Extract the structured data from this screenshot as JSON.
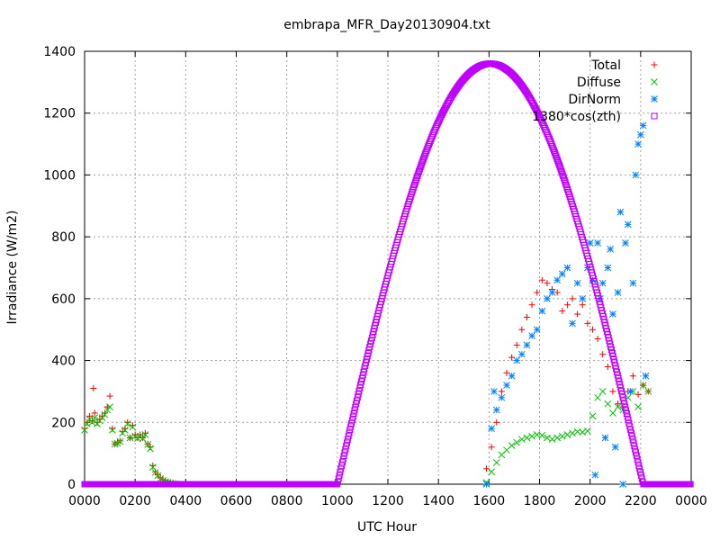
{
  "chart_data": {
    "type": "scatter",
    "title": "embrapa_MFR_Day20130904.txt",
    "xlabel": "UTC Hour",
    "ylabel": "Irradiance (W/m2)",
    "xlim": [
      0,
      24
    ],
    "ylim": [
      0,
      1400
    ],
    "grid": true,
    "legend_position": "top-right",
    "x_ticks": [
      {
        "value": 0,
        "label": "0000"
      },
      {
        "value": 2,
        "label": "0200"
      },
      {
        "value": 4,
        "label": "0400"
      },
      {
        "value": 6,
        "label": "0600"
      },
      {
        "value": 8,
        "label": "0800"
      },
      {
        "value": 10,
        "label": "1000"
      },
      {
        "value": 12,
        "label": "1200"
      },
      {
        "value": 14,
        "label": "1400"
      },
      {
        "value": 16,
        "label": "1600"
      },
      {
        "value": 18,
        "label": "1800"
      },
      {
        "value": 20,
        "label": "2000"
      },
      {
        "value": 22,
        "label": "2200"
      },
      {
        "value": 24,
        "label": "0000"
      }
    ],
    "y_ticks": [
      0,
      200,
      400,
      600,
      800,
      1000,
      1200,
      1400
    ],
    "series": [
      {
        "name": "Total",
        "marker": "plus",
        "color": "#ff0000",
        "x": [
          0.0,
          0.1,
          0.2,
          0.3,
          0.35,
          0.4,
          0.5,
          0.6,
          0.7,
          0.8,
          0.9,
          1.0,
          1.1,
          1.2,
          1.3,
          1.4,
          1.5,
          1.6,
          1.7,
          1.8,
          1.9,
          2.0,
          2.1,
          2.2,
          2.3,
          2.4,
          2.5,
          2.6,
          2.7,
          2.8,
          2.9,
          3.0,
          3.1,
          3.2,
          3.3,
          3.4,
          3.5,
          3.6,
          3.7,
          15.9,
          16.1,
          16.3,
          16.5,
          16.7,
          16.9,
          17.1,
          17.3,
          17.5,
          17.7,
          17.9,
          18.1,
          18.3,
          18.5,
          18.7,
          18.9,
          19.1,
          19.3,
          19.5,
          19.7,
          19.9,
          20.1,
          20.3,
          20.5,
          20.7,
          20.9,
          21.1,
          21.3,
          21.5,
          21.7,
          21.9,
          22.1,
          22.3
        ],
        "y": [
          180,
          200,
          220,
          205,
          310,
          230,
          200,
          210,
          220,
          230,
          250,
          285,
          180,
          130,
          135,
          140,
          170,
          180,
          200,
          150,
          190,
          160,
          150,
          160,
          150,
          165,
          130,
          120,
          60,
          40,
          30,
          20,
          15,
          10,
          8,
          5,
          3,
          1,
          0,
          50,
          120,
          200,
          300,
          360,
          410,
          450,
          500,
          540,
          580,
          620,
          660,
          650,
          630,
          620,
          560,
          580,
          600,
          550,
          580,
          520,
          500,
          470,
          420,
          380,
          300,
          260,
          250,
          300,
          350,
          290,
          320,
          300
        ]
      },
      {
        "name": "Diffuse",
        "marker": "cross",
        "color": "#00c000",
        "x": [
          0.0,
          0.1,
          0.2,
          0.3,
          0.4,
          0.5,
          0.6,
          0.7,
          0.8,
          0.9,
          1.0,
          1.1,
          1.2,
          1.3,
          1.4,
          1.5,
          1.6,
          1.7,
          1.8,
          1.9,
          2.0,
          2.1,
          2.2,
          2.3,
          2.4,
          2.5,
          2.6,
          2.7,
          2.8,
          2.9,
          3.0,
          3.1,
          3.2,
          3.3,
          3.4,
          3.5,
          3.6,
          3.7,
          15.9,
          16.1,
          16.3,
          16.5,
          16.7,
          16.9,
          17.1,
          17.3,
          17.5,
          17.7,
          17.9,
          18.1,
          18.3,
          18.5,
          18.7,
          18.9,
          19.1,
          19.3,
          19.5,
          19.7,
          19.9,
          20.1,
          20.3,
          20.5,
          20.7,
          20.9,
          21.1,
          21.3,
          21.5,
          21.7,
          21.9,
          22.1,
          22.3
        ],
        "y": [
          175,
          195,
          210,
          200,
          215,
          195,
          205,
          215,
          225,
          240,
          250,
          175,
          130,
          132,
          138,
          165,
          175,
          195,
          150,
          185,
          155,
          148,
          155,
          148,
          160,
          128,
          115,
          55,
          38,
          28,
          18,
          12,
          8,
          6,
          4,
          2,
          1,
          0,
          5,
          40,
          70,
          95,
          110,
          125,
          135,
          145,
          150,
          155,
          160,
          158,
          150,
          145,
          150,
          155,
          160,
          165,
          170,
          168,
          172,
          220,
          280,
          300,
          260,
          230,
          250,
          240,
          280,
          300,
          250,
          320,
          300
        ]
      },
      {
        "name": "DirNorm",
        "marker": "star",
        "color": "#0080ff",
        "x": [
          15.9,
          16.1,
          16.2,
          16.3,
          16.5,
          16.7,
          16.9,
          17.1,
          17.3,
          17.5,
          17.7,
          17.9,
          18.1,
          18.3,
          18.5,
          18.7,
          18.9,
          19.1,
          19.3,
          19.5,
          19.7,
          19.9,
          20.0,
          20.1,
          20.2,
          20.3,
          20.4,
          20.5,
          20.6,
          20.7,
          20.8,
          20.9,
          21.0,
          21.1,
          21.2,
          21.3,
          21.4,
          21.5,
          21.6,
          21.7,
          21.8,
          21.9,
          22.0,
          22.1,
          22.2
        ],
        "y": [
          0,
          180,
          300,
          240,
          280,
          320,
          350,
          400,
          420,
          450,
          480,
          500,
          560,
          600,
          620,
          660,
          680,
          700,
          520,
          650,
          600,
          700,
          780,
          660,
          30,
          780,
          600,
          650,
          150,
          700,
          760,
          550,
          120,
          620,
          880,
          0,
          780,
          840,
          300,
          650,
          1000,
          1100,
          1130,
          1160,
          350
        ]
      },
      {
        "name": "1380*cos(zth)",
        "marker": "square",
        "color": "#c000ff",
        "formula": "1360*cos(pi*(h-16.05)/12.1) for 10.0<=h<=22.1, else 0",
        "x": [
          0,
          2,
          4,
          6,
          8,
          10,
          10.2,
          10.6,
          11,
          11.5,
          12,
          12.5,
          13,
          13.5,
          14,
          14.5,
          15,
          15.5,
          16,
          16.05,
          16.5,
          17,
          17.5,
          18,
          18.5,
          19,
          19.5,
          20,
          20.5,
          21,
          21.5,
          22,
          22.1,
          22.3
        ],
        "y": [
          0,
          0,
          0,
          0,
          0,
          0,
          80,
          200,
          330,
          480,
          615,
          750,
          870,
          990,
          1090,
          1180,
          1250,
          1305,
          1355,
          1360,
          1340,
          1310,
          1260,
          1190,
          1110,
          1010,
          880,
          760,
          610,
          460,
          300,
          140,
          0,
          0
        ]
      }
    ]
  }
}
